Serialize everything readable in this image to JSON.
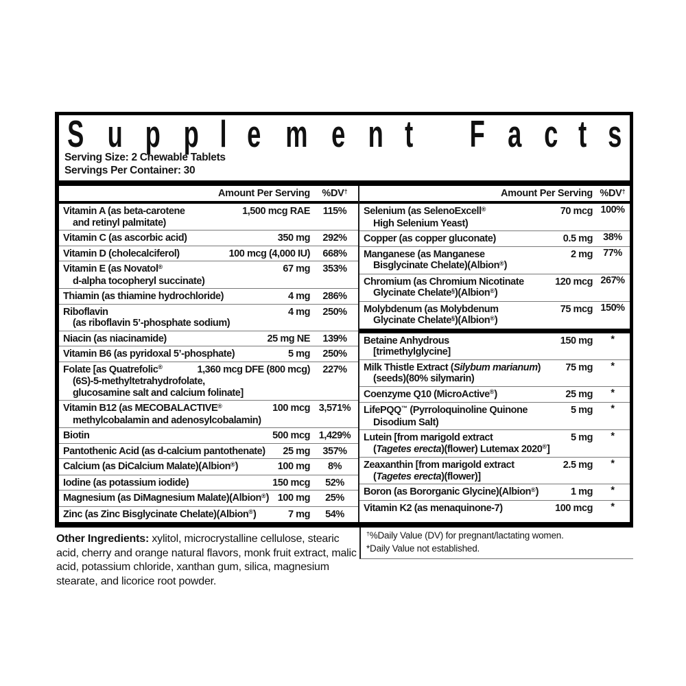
{
  "title": "Supplement Facts",
  "serving_info": {
    "serving_size": "Serving Size: 2 Chewable Tablets",
    "servings_per_container": "Servings Per Container: 30"
  },
  "column_headers": {
    "amount": "Amount Per Serving",
    "dv": "%DV†"
  },
  "columns": {
    "left": [
      {
        "rows": [
          {
            "lines": [
              [
                "Vitamin A (as beta-carotene"
              ],
              [
                "and retinyl palmitate)"
              ]
            ],
            "amount": "1,500 mcg RAE",
            "dv": "115%"
          },
          {
            "lines": [
              [
                "Vitamin C (as ascorbic acid)"
              ]
            ],
            "amount": "350 mg",
            "dv": "292%"
          },
          {
            "lines": [
              [
                "Vitamin D (cholecalciferol)"
              ]
            ],
            "amount": "100 mcg (4,000 IU)",
            "dv": "668%"
          },
          {
            "lines": [
              [
                "Vitamin E (as Novatol®"
              ],
              [
                "d-alpha tocopheryl succinate)"
              ]
            ],
            "amount": "67 mg",
            "dv": "353%"
          },
          {
            "lines": [
              [
                "Thiamin (as thiamine hydrochloride)"
              ]
            ],
            "amount": "4 mg",
            "dv": "286%"
          },
          {
            "lines": [
              [
                "Riboflavin"
              ],
              [
                "(as riboflavin 5’-phosphate sodium)"
              ]
            ],
            "amount": "4 mg",
            "dv": "250%"
          },
          {
            "lines": [
              [
                "Niacin (as niacinamide)"
              ]
            ],
            "amount": "25 mg NE",
            "dv": "139%"
          },
          {
            "lines": [
              [
                "Vitamin B6 (as pyridoxal 5’-phosphate)"
              ]
            ],
            "amount": "5 mg",
            "dv": "250%"
          },
          {
            "lines": [
              [
                "Folate [as Quatrefolic®"
              ],
              [
                "(6S)-5-methyltetrahydrofolate,"
              ],
              [
                "glucosamine salt and calcium folinate]"
              ]
            ],
            "amount": "1,360 mcg DFE (800 mcg)",
            "dv": "227%"
          },
          {
            "lines": [
              [
                "Vitamin B12 (as MECOBALACTIVE®"
              ],
              [
                "methylcobalamin and adenosylcobalamin)"
              ]
            ],
            "amount": "100 mcg",
            "dv": "3,571%"
          },
          {
            "lines": [
              [
                "Biotin"
              ]
            ],
            "amount": "500 mcg",
            "dv": "1,429%"
          },
          {
            "lines": [
              [
                "Pantothenic Acid (as d-calcium pantothenate)"
              ]
            ],
            "amount": "25 mg",
            "dv": "357%"
          },
          {
            "lines": [
              [
                "Calcium (as DiCalcium Malate)(Albion®)"
              ]
            ],
            "amount": "100 mg",
            "dv": "8%"
          },
          {
            "lines": [
              [
                "Iodine (as potassium iodide)"
              ]
            ],
            "amount": "150 mcg",
            "dv": "52%"
          },
          {
            "lines": [
              [
                "Magnesium (as DiMagnesium Malate)(Albion®)"
              ]
            ],
            "amount": "100 mg",
            "dv": "25%"
          },
          {
            "lines": [
              [
                "Zinc (as Zinc Bisglycinate Chelate)(Albion®)"
              ]
            ],
            "amount": "7 mg",
            "dv": "54%"
          }
        ]
      }
    ],
    "right": [
      {
        "rows": [
          {
            "lines": [
              [
                "Selenium (as SelenoExcell®"
              ],
              [
                "High Selenium Yeast)"
              ]
            ],
            "amount": "70 mcg",
            "dv": "100%"
          },
          {
            "lines": [
              [
                "Copper (as copper gluconate)"
              ]
            ],
            "amount": "0.5 mg",
            "dv": "38%"
          },
          {
            "lines": [
              [
                "Manganese (as Manganese"
              ],
              [
                "Bisglycinate Chelate)(Albion®)"
              ]
            ],
            "amount": "2 mg",
            "dv": "77%"
          },
          {
            "lines": [
              [
                "Chromium (as Chromium Nicotinate"
              ],
              [
                "Glycinate Chelate§)(Albion®)"
              ]
            ],
            "amount": "120 mcg",
            "dv": "267%"
          },
          {
            "lines": [
              [
                "Molybdenum (as Molybdenum"
              ],
              [
                "Glycinate Chelate§)(Albion®)"
              ]
            ],
            "amount": "75 mcg",
            "dv": "150%"
          }
        ]
      },
      {
        "rows": [
          {
            "lines": [
              [
                "Betaine Anhydrous"
              ],
              [
                "[trimethylglycine]"
              ]
            ],
            "amount": "150 mg",
            "dv": "*"
          },
          {
            "lines": [
              [
                "Milk Thistle Extract (",
                {
                  "t": "Silybum marianum",
                  "i": true
                },
                ")"
              ],
              [
                "(seeds)(80% silymarin)"
              ]
            ],
            "amount": "75 mg",
            "dv": "*"
          },
          {
            "lines": [
              [
                "Coenzyme Q10 (MicroActive®)"
              ]
            ],
            "amount": "25 mg",
            "dv": "*"
          },
          {
            "lines": [
              [
                "LifePQQ™ (Pyrroloquinoline Quinone"
              ],
              [
                "Disodium Salt)"
              ]
            ],
            "amount": "5 mg",
            "dv": "*"
          },
          {
            "lines": [
              [
                "Lutein [from marigold extract"
              ],
              [
                "(",
                {
                  "t": "Tagetes erecta",
                  "i": true
                },
                ")(flower) Lutemax 2020®]"
              ]
            ],
            "amount": "5 mg",
            "dv": "*"
          },
          {
            "lines": [
              [
                "Zeaxanthin [from marigold extract"
              ],
              [
                "(",
                {
                  "t": "Tagetes erecta",
                  "i": true
                },
                ")(flower)]"
              ]
            ],
            "amount": "2.5 mg",
            "dv": "*"
          },
          {
            "lines": [
              [
                "Boron (as Bororganic Glycine)(Albion®)"
              ]
            ],
            "amount": "1 mg",
            "dv": "*"
          },
          {
            "lines": [
              [
                "Vitamin K2 (as menaquinone-7)"
              ]
            ],
            "amount": "100 mcg",
            "dv": "*"
          }
        ]
      }
    ]
  },
  "other_ingredients": {
    "label": "Other Ingredients:",
    "text": " xylitol, microcrystalline cellulose, stearic acid, cherry and orange natural flavors, monk fruit extract, malic acid, potassium chloride, xanthan gum, silica, magnesium stearate, and licorice root powder."
  },
  "footnotes": [
    "†%Daily Value (DV) for pregnant/lactating women.",
    "*Daily Value not established."
  ],
  "colors": {
    "ink": "#151515",
    "rule_thin": "#787878",
    "bar": "#000000",
    "background": "#ffffff"
  }
}
